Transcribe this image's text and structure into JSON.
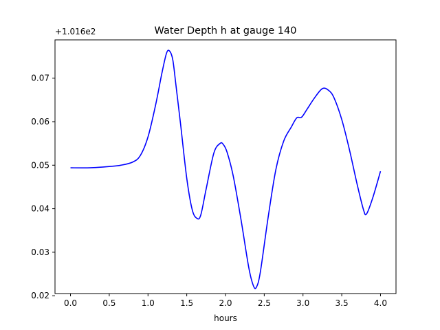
{
  "chart_data": {
    "type": "line",
    "title": "Water Depth h at gauge 140",
    "xlabel": "hours",
    "ylabel": "",
    "y_offset_label": "+1.016e2",
    "y_offset": 101.6,
    "xlim": [
      -0.2,
      4.2
    ],
    "ylim": [
      0.0205,
      0.0788
    ],
    "xticks": [
      0.0,
      0.5,
      1.0,
      1.5,
      2.0,
      2.5,
      3.0,
      3.5,
      4.0
    ],
    "xtick_labels": [
      "0.0",
      "0.5",
      "1.0",
      "1.5",
      "2.0",
      "2.5",
      "3.0",
      "3.5",
      "4.0"
    ],
    "yticks": [
      0.02,
      0.03,
      0.04,
      0.05,
      0.06,
      0.07
    ],
    "ytick_labels": [
      "0.02",
      "0.03",
      "0.04",
      "0.05",
      "0.06",
      "0.07"
    ],
    "grid": false,
    "color": "#0000ff",
    "series": [
      {
        "x": [
          0.0,
          0.25,
          0.5,
          0.65,
          0.8,
          0.9,
          1.0,
          1.1,
          1.18,
          1.24,
          1.28,
          1.32,
          1.36,
          1.42,
          1.5,
          1.57,
          1.63,
          1.68,
          1.75,
          1.85,
          1.93,
          1.97,
          2.02,
          2.1,
          2.2,
          2.3,
          2.36,
          2.4,
          2.45,
          2.55,
          2.65,
          2.75,
          2.85,
          2.92,
          2.98,
          3.05,
          3.15,
          3.25,
          3.33,
          3.4,
          3.5,
          3.6,
          3.7,
          3.78,
          3.82,
          3.9,
          4.0
        ],
        "y": [
          0.0494,
          0.0494,
          0.0497,
          0.05,
          0.0507,
          0.0522,
          0.0565,
          0.064,
          0.0712,
          0.0758,
          0.0762,
          0.0742,
          0.0685,
          0.0595,
          0.047,
          0.0398,
          0.0378,
          0.0385,
          0.0445,
          0.0528,
          0.055,
          0.0548,
          0.053,
          0.0475,
          0.0375,
          0.0265,
          0.0223,
          0.022,
          0.0255,
          0.038,
          0.049,
          0.0555,
          0.0588,
          0.0609,
          0.061,
          0.0628,
          0.0655,
          0.0676,
          0.0672,
          0.0655,
          0.0605,
          0.0535,
          0.0455,
          0.0398,
          0.0388,
          0.0425,
          0.0486
        ]
      }
    ]
  }
}
